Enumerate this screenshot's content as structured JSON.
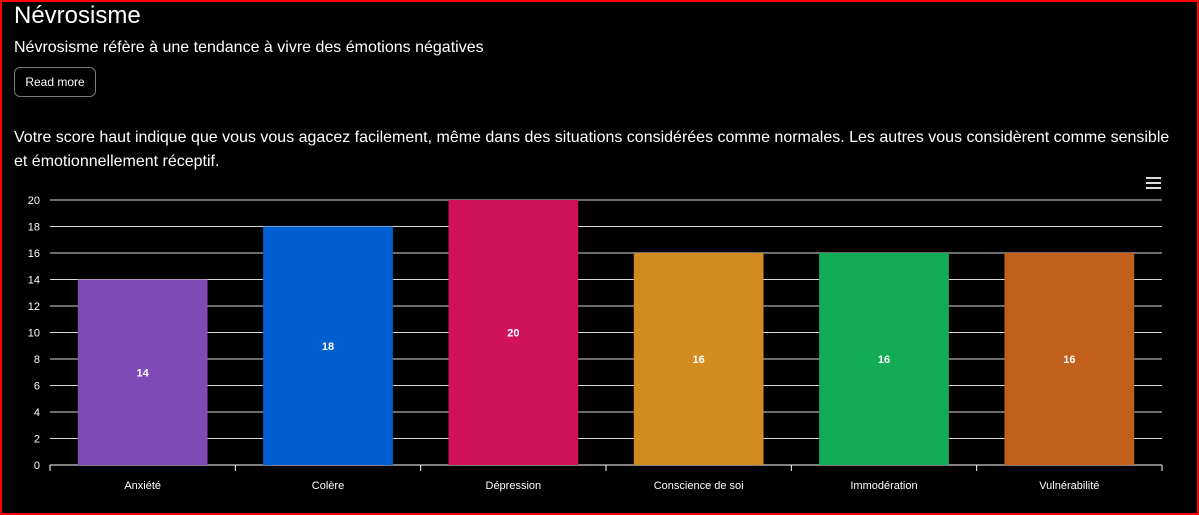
{
  "section": {
    "title": "Névrosisme",
    "subtitle": "Névrosisme réfère à une tendance à vivre des émotions négatives",
    "read_more_label": "Read more",
    "description": "Votre score haut indique que vous vous agacez facilement, même dans des situations considérées comme normales. Les autres vous considèrent comme sensible et émotionnellement réceptif."
  },
  "chart_menu": {
    "icon": "hamburger-menu-icon"
  },
  "chart_data": {
    "type": "bar",
    "categories": [
      "Anxiété",
      "Colère",
      "Dépression",
      "Conscience de soi",
      "Immodération",
      "Vulnérabilité"
    ],
    "values": [
      14,
      18,
      20,
      16,
      16,
      16
    ],
    "colors": [
      "#7e4ab5",
      "#005fd0",
      "#d0125a",
      "#d08b21",
      "#12ab56",
      "#c15f1b"
    ],
    "ylim": [
      0,
      20
    ],
    "yticks": [
      0,
      2,
      4,
      6,
      8,
      10,
      12,
      14,
      16,
      18,
      20
    ],
    "grid": true,
    "data_labels": true,
    "title": "",
    "xlabel": "",
    "ylabel": ""
  }
}
